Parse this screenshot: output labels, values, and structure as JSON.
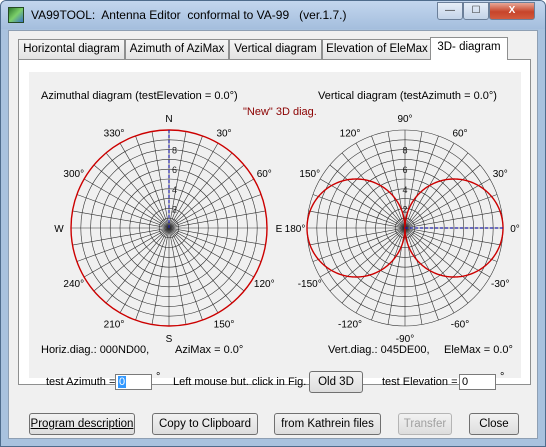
{
  "window": {
    "title": "VA99TOOL:  Antenna Editor  conformal to VA-99   (ver.1.7.)",
    "minimize": "—",
    "maximize": "☐",
    "close": "X"
  },
  "tabs": [
    {
      "label": "Horizontal diagram",
      "active": false
    },
    {
      "label": "Azimuth of AziMax",
      "active": false
    },
    {
      "label": "Vertical diagram",
      "active": false
    },
    {
      "label": "Elevation of EleMax",
      "active": false
    },
    {
      "label": "3D- diagram",
      "active": true
    }
  ],
  "left_plot": {
    "heading": "Azimuthal diagram  (testElevation = 0.0°)",
    "angle_labels": [
      "N",
      "30°",
      "60°",
      "E",
      "120°",
      "150°",
      "S",
      "210°",
      "240°",
      "W",
      "300°",
      "330°"
    ],
    "radial_scale": [
      "2",
      "4",
      "6",
      "8"
    ],
    "footer_left": "Horiz.diag.: 000ND00,",
    "footer_right": "AziMax = 0.0°"
  },
  "new_3d_label": "\"New\" 3D diag.",
  "right_plot": {
    "heading": "Vertical diagram  (testAzimuth = 0.0°)",
    "angle_labels": [
      "0°",
      "30°",
      "60°",
      "90°",
      "120°",
      "150°",
      "180°",
      "-150°",
      "-120°",
      "-90°",
      "-60°",
      "-30°"
    ],
    "radial_scale": [
      "2",
      "4",
      "6",
      "8"
    ],
    "footer_left": "Vert.diag.: 045DE00,",
    "footer_right": "EleMax = 0.0°"
  },
  "controls": {
    "test_azimuth_label": "test Azimuth =",
    "test_azimuth_value": "0",
    "degree_symbol": "°",
    "hint": "Left mouse but. click in Fig.",
    "old3d_button": "Old 3D",
    "test_elevation_label": "test Elevation =",
    "test_elevation_value": "0"
  },
  "buttons": {
    "program_description": "Program description",
    "copy_clipboard": "Copy to Clipboard",
    "from_kathrein": "from  Kathrein files",
    "transfer": "Transfer",
    "close": "Close"
  },
  "colors": {
    "pattern": "#cc0000",
    "grid": "#303030",
    "axis_marker": "#1f1fa8",
    "new3d_text": "#8b0000",
    "panel_bg": "#f0f0f0"
  }
}
